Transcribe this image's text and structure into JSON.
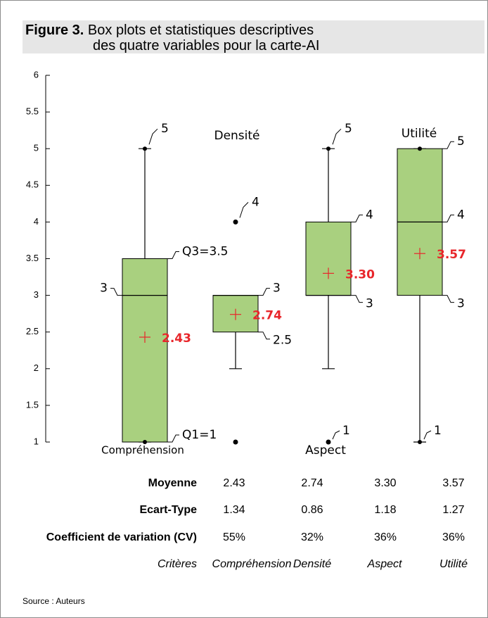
{
  "figure": {
    "label": "Figure 3.",
    "title_line1": "Box plots et statistiques descriptives",
    "title_line2": "des quatre variables pour la carte-AI",
    "source": "Source : Auteurs"
  },
  "chart_data": {
    "type": "boxplot",
    "ylim": [
      1,
      6
    ],
    "y_ticks": [
      "1",
      "1.5",
      "2",
      "2.5",
      "3",
      "3.5",
      "4",
      "4.5",
      "5",
      "5.5",
      "6"
    ],
    "grid": false,
    "box_color": "#a9d07f",
    "mean_color": "#e8262b",
    "series": [
      {
        "name": "Compréhension",
        "min": 1,
        "q1": 1,
        "median": 3,
        "q3": 3.5,
        "max": 5,
        "mean": 2.43,
        "outliers": [],
        "labels": {
          "max": "5",
          "q3": "Q3=3.5",
          "median": "3",
          "q1": "Q1=1",
          "mean": "2.43"
        }
      },
      {
        "name": "Densité",
        "min": 2,
        "q1": 2.5,
        "median": 3,
        "q3": 3,
        "max": 3,
        "mean": 2.74,
        "outliers": [
          4,
          1
        ],
        "labels": {
          "outlier_high": "4",
          "q3": "3",
          "q1": "2.5",
          "mean": "2.74"
        }
      },
      {
        "name": "Aspect",
        "min": 2,
        "q1": 3,
        "median": 3,
        "q3": 4,
        "max": 5,
        "mean": 3.3,
        "outliers": [
          1
        ],
        "labels": {
          "max": "5",
          "q3": "4",
          "q1": "3",
          "outlier_low": "1",
          "mean": "3.30"
        }
      },
      {
        "name": "Utilité",
        "min": 1,
        "q1": 3,
        "median": 4,
        "q3": 5,
        "max": 5,
        "mean": 3.57,
        "outliers": [],
        "labels": {
          "max": "5",
          "median": "4",
          "q1": "3",
          "min": "1",
          "mean": "3.57"
        }
      }
    ]
  },
  "stats_table": {
    "rows": [
      {
        "label": "Moyenne",
        "values": [
          "2.43",
          "2.74",
          "3.30",
          "3.57"
        ]
      },
      {
        "label": "Ecart-Type",
        "values": [
          "1.34",
          "0.86",
          "1.18",
          "1.27"
        ]
      },
      {
        "label": "Coefficient de variation (CV)",
        "values": [
          "55%",
          "32%",
          "36%",
          "36%"
        ]
      }
    ],
    "footer_label": "Critères",
    "columns": [
      "Compréhension",
      "Densité",
      "Aspect",
      "Utilité"
    ]
  }
}
